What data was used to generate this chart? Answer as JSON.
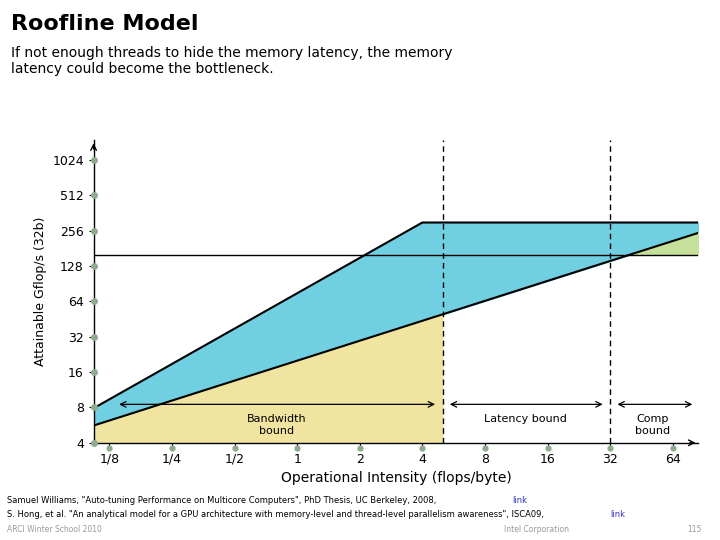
{
  "title": "Roofline Model",
  "subtitle": "If not enough threads to hide the memory latency, the memory\nlatency could become the bottleneck.",
  "xlabel": "Operational Intensity (flops/byte)",
  "ylabel": "Attainable Gflop/s (32b)",
  "background_color": "#ffffff",
  "peak_upper": 300.0,
  "peak_lower": 160.0,
  "bw_upper": 75.0,
  "bw_lower": 42.0,
  "lat_A": 14.0,
  "lat_n": 0.72,
  "xtick_labels": [
    "1/8",
    "1/4",
    "1/2",
    "1",
    "2",
    "4",
    "8",
    "16",
    "32",
    "64"
  ],
  "xtick_values": [
    0.125,
    0.25,
    0.5,
    1,
    2,
    4,
    8,
    16,
    32,
    64
  ],
  "ytick_values": [
    4,
    8,
    16,
    32,
    64,
    128,
    256,
    512,
    1024
  ],
  "dashed_line1_x": 5.0,
  "dashed_line2_x": 32.0,
  "cyan_color": "#70cfe0",
  "yellow_color": "#f0e4a0",
  "green_color": "#c5e09a",
  "dot_color": "#90aa90",
  "ref1": "Samuel Williams, \"Auto-tuning Performance on Multicore Computers\", PhD Thesis, UC Berkeley, 2008,",
  "ref1_link": "link",
  "ref2": "S. Hong, et al. \"An analytical model for a GPU architecture with memory-level and thread-level parallelism awareness\", ISCA09,",
  "ref2_link": "link",
  "watermark_left": "ARCI Winter School 2010",
  "watermark_right": "Intel Corporation",
  "slide_num": "115"
}
